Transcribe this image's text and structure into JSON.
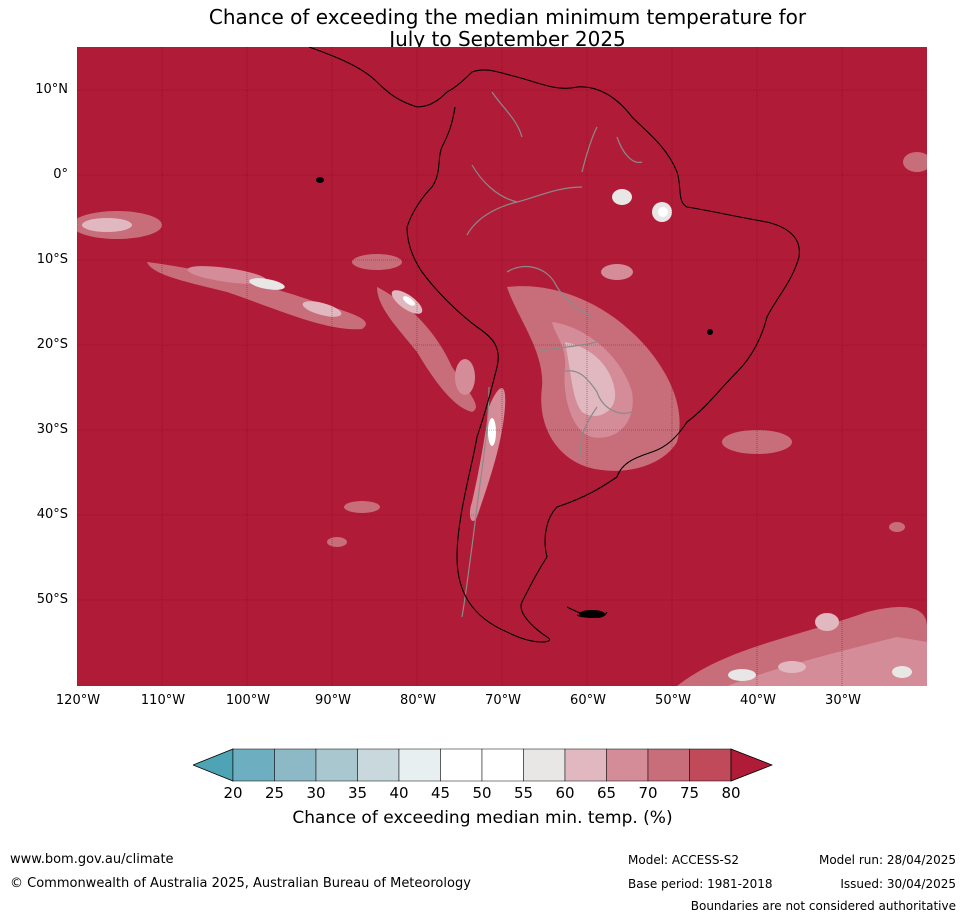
{
  "title_line1": "Chance of exceeding the median minimum temperature for",
  "title_line2": "July to September 2025",
  "map": {
    "lat_labels": [
      "10°N",
      "0°",
      "10°S",
      "20°S",
      "30°S",
      "40°S",
      "50°S"
    ],
    "lon_labels": [
      "120°W",
      "110°W",
      "100°W",
      "90°W",
      "80°W",
      "70°W",
      "60°W",
      "50°W",
      "40°W",
      "30°W"
    ],
    "base_color": "#b01c38"
  },
  "colorbar": {
    "title": "Chance of exceeding median min. temp. (%)",
    "ticks": [
      "20",
      "25",
      "30",
      "35",
      "40",
      "45",
      "50",
      "55",
      "60",
      "65",
      "70",
      "75",
      "80"
    ],
    "colors": [
      "#4ea3b4",
      "#6daec0",
      "#8db9c6",
      "#a9c7ce",
      "#c8d8dc",
      "#e8eff0",
      "#ffffff",
      "#ffffff",
      "#e9e6e6",
      "#e1b8bf",
      "#d48d98",
      "#c86e7b",
      "#c0495a",
      "#b01c38"
    ]
  },
  "footer": {
    "website": "www.bom.gov.au/climate",
    "copyright": "© Commonwealth of Australia 2025, Australian Bureau of Meteorology",
    "model": "Model: ACCESS-S2",
    "base_period": "Base period: 1981-2018",
    "model_run": "Model run: 28/04/2025",
    "issued": "Issued: 30/04/2025",
    "disclaimer": "Boundaries are not considered authoritative"
  }
}
